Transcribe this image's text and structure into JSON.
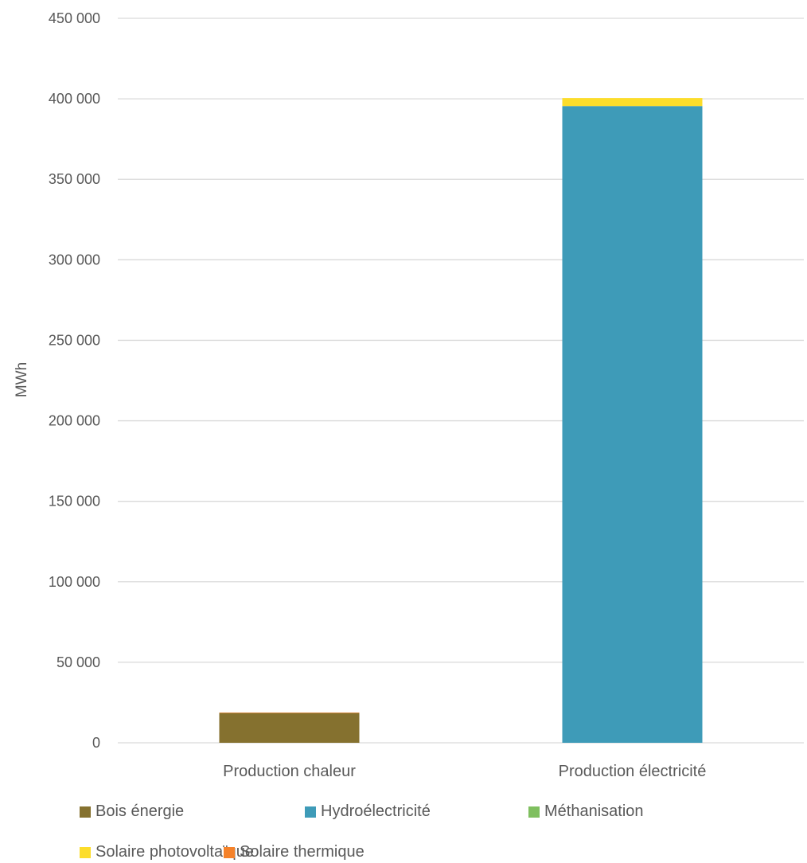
{
  "chart_data": {
    "type": "bar",
    "stacked": true,
    "title": "",
    "xlabel": "",
    "ylabel": "MWh",
    "ylim": [
      0,
      450000
    ],
    "yticks": [
      0,
      50000,
      100000,
      150000,
      200000,
      250000,
      300000,
      350000,
      400000,
      450000
    ],
    "ytick_labels": [
      "0",
      "50 000",
      "100 000",
      "150 000",
      "200 000",
      "250 000",
      "300 000",
      "350 000",
      "400 000",
      "450 000"
    ],
    "grid": true,
    "legend_position": "bottom",
    "categories": [
      "Production chaleur",
      "Production électricité"
    ],
    "series": [
      {
        "name": "Bois énergie",
        "color": "#85712F",
        "values": [
          18500,
          0
        ]
      },
      {
        "name": "Hydroélectricité",
        "color": "#3E9BB8",
        "values": [
          0,
          395500
        ]
      },
      {
        "name": "Méthanisation",
        "color": "#7FBF5F",
        "values": [
          0,
          0
        ]
      },
      {
        "name": "Solaire photovoltaïque",
        "color": "#FCDD2B",
        "values": [
          0,
          5000
        ]
      },
      {
        "name": "Solaire thermique",
        "color": "#F5822A",
        "values": [
          300,
          0
        ]
      }
    ]
  }
}
